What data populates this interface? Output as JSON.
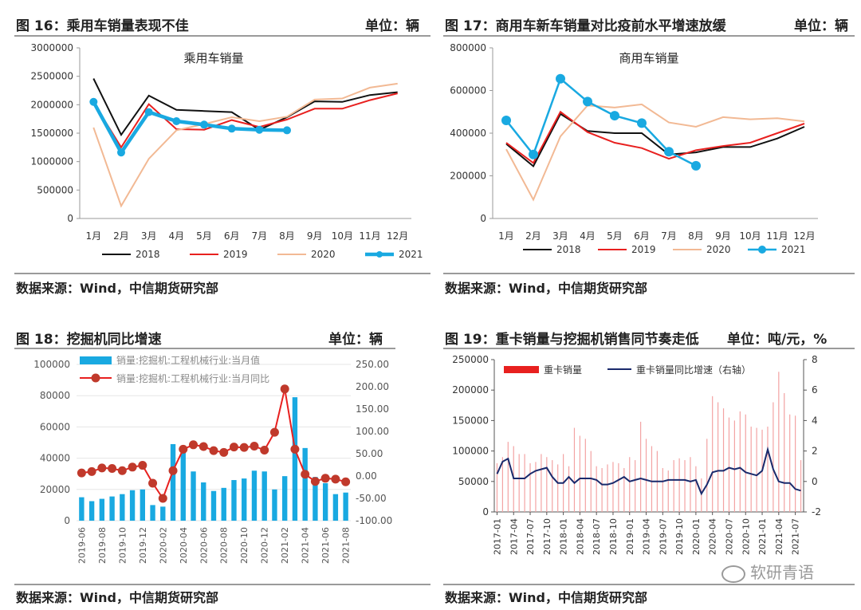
{
  "panels": {
    "p16": {
      "title": "图 16：乘用车销量表现不佳",
      "unit": "单位：辆",
      "source": "数据来源：Wind，中信期货研究部"
    },
    "p17": {
      "title": "图 17：商用车新车销量对比疫前水平增速放缓",
      "unit": "单位：辆",
      "source": "数据来源：Wind，中信期货研究部"
    },
    "p18": {
      "title": "图 18：挖掘机同比增速",
      "unit": "单位：辆",
      "source": "数据来源：Wind，中信期货研究部"
    },
    "p19": {
      "title": "图 19：重卡销量与挖掘机销售同节奏走低",
      "unit": "单位：吨/元，%",
      "source": "数据来源：Wind，中信期货研究部"
    }
  },
  "watermark": "软研青语",
  "colors": {
    "black": "#111111",
    "red": "#e8201f",
    "peach": "#f2b994",
    "blue": "#19a9e1",
    "navy": "#1a2a6c",
    "dotred": "#c0392b"
  },
  "chart_data": [
    {
      "id": "c16",
      "type": "line",
      "title": "乘用车销量",
      "categories": [
        "1月",
        "2月",
        "3月",
        "4月",
        "5月",
        "6月",
        "7月",
        "8月",
        "9月",
        "10月",
        "11月",
        "12月"
      ],
      "ylim": [
        0,
        3000000
      ],
      "yticks": [
        "0",
        "500000",
        "1000000",
        "1500000",
        "2000000",
        "2500000",
        "3000000"
      ],
      "series": [
        {
          "name": "2018",
          "color": "#111111",
          "values": [
            2460000,
            1470000,
            2160000,
            1910000,
            1890000,
            1870000,
            1560000,
            1780000,
            2060000,
            2050000,
            2170000,
            2220000
          ]
        },
        {
          "name": "2019",
          "color": "#e8201f",
          "values": [
            2040000,
            1250000,
            2010000,
            1570000,
            1560000,
            1730000,
            1610000,
            1740000,
            1930000,
            1930000,
            2080000,
            2200000
          ]
        },
        {
          "name": "2020",
          "color": "#f2b994",
          "values": [
            1600000,
            220000,
            1050000,
            1550000,
            1660000,
            1780000,
            1710000,
            1790000,
            2090000,
            2110000,
            2300000,
            2370000
          ]
        },
        {
          "name": "2021",
          "color": "#19a9e1",
          "values": [
            2050000,
            1160000,
            1870000,
            1710000,
            1650000,
            1580000,
            1560000,
            1550000,
            null,
            null,
            null,
            null
          ]
        }
      ]
    },
    {
      "id": "c17",
      "type": "line",
      "title": "商用车销量",
      "categories": [
        "1月",
        "2月",
        "3月",
        "4月",
        "5月",
        "6月",
        "7月",
        "8月",
        "9月",
        "10月",
        "11月",
        "12月"
      ],
      "ylim": [
        0,
        800000
      ],
      "yticks": [
        "0",
        "200000",
        "400000",
        "600000",
        "800000"
      ],
      "series": [
        {
          "name": "2018",
          "color": "#111111",
          "values": [
            350000,
            245000,
            490000,
            410000,
            400000,
            400000,
            300000,
            310000,
            335000,
            335000,
            375000,
            430000
          ]
        },
        {
          "name": "2019",
          "color": "#e8201f",
          "values": [
            355000,
            260000,
            500000,
            405000,
            355000,
            330000,
            280000,
            320000,
            340000,
            355000,
            400000,
            445000
          ]
        },
        {
          "name": "2020",
          "color": "#f2b994",
          "values": [
            325000,
            88000,
            385000,
            530000,
            520000,
            535000,
            450000,
            430000,
            475000,
            465000,
            470000,
            455000
          ]
        },
        {
          "name": "2021",
          "color": "#19a9e1",
          "values": [
            460000,
            300000,
            655000,
            548000,
            482000,
            447000,
            313000,
            247000,
            null,
            null,
            null,
            null
          ]
        }
      ]
    },
    {
      "id": "c18",
      "type": "bar",
      "categories": [
        "2019-06",
        "2019-07",
        "2019-08",
        "2019-09",
        "2019-10",
        "2019-11",
        "2019-12",
        "2020-01",
        "2020-02",
        "2020-03",
        "2020-04",
        "2020-05",
        "2020-06",
        "2020-07",
        "2020-08",
        "2020-09",
        "2020-10",
        "2020-11",
        "2020-12",
        "2021-01",
        "2021-02",
        "2021-03",
        "2021-04",
        "2021-05",
        "2021-06",
        "2021-07",
        "2021-08"
      ],
      "xtick_labels": [
        "2019-06",
        "2019-08",
        "2019-10",
        "2019-12",
        "2020-02",
        "2020-04",
        "2020-06",
        "2020-08",
        "2020-10",
        "2020-12",
        "2021-02",
        "2021-04",
        "2021-06",
        "2021-08"
      ],
      "ylim": [
        0,
        100000
      ],
      "yticks": [
        "0",
        "20000",
        "40000",
        "60000",
        "80000",
        "100000"
      ],
      "y2lim": [
        -100,
        250
      ],
      "y2ticks": [
        "-100.00",
        "-50.00",
        "0.00",
        "50.00",
        "100.00",
        "150.00",
        "200.00",
        "250.00"
      ],
      "series": [
        {
          "name": "销量:挖掘机:工程机械行业:当月值",
          "color": "#19a9e1",
          "axis": "left",
          "values": [
            15000,
            12500,
            14000,
            15500,
            17000,
            19500,
            20000,
            10000,
            9000,
            49000,
            44000,
            31500,
            24500,
            19000,
            21000,
            26000,
            27000,
            32000,
            31500,
            20000,
            28500,
            79000,
            46500,
            28000,
            24000,
            17000,
            18000
          ]
        },
        {
          "name": "销量:挖掘机:工程机械行业:当月同比",
          "color": "#c0392b",
          "axis": "right",
          "values": [
            7,
            10,
            18,
            17,
            12,
            20,
            24,
            -16,
            -50,
            12,
            60,
            70,
            66,
            57,
            53,
            65,
            64,
            67,
            58,
            98,
            195,
            60,
            4,
            -12,
            -5,
            -7,
            -13
          ]
        }
      ]
    },
    {
      "id": "c19",
      "type": "bar",
      "categories": [
        "2017-01",
        "2017-02",
        "2017-03",
        "2017-04",
        "2017-05",
        "2017-06",
        "2017-07",
        "2017-08",
        "2017-09",
        "2017-10",
        "2017-11",
        "2017-12",
        "2018-01",
        "2018-02",
        "2018-03",
        "2018-04",
        "2018-05",
        "2018-06",
        "2018-07",
        "2018-08",
        "2018-09",
        "2018-10",
        "2018-11",
        "2018-12",
        "2019-01",
        "2019-02",
        "2019-03",
        "2019-04",
        "2019-05",
        "2019-06",
        "2019-07",
        "2019-08",
        "2019-09",
        "2019-10",
        "2019-11",
        "2019-12",
        "2020-01",
        "2020-02",
        "2020-03",
        "2020-04",
        "2020-05",
        "2020-06",
        "2020-07",
        "2020-08",
        "2020-09",
        "2020-10",
        "2020-11",
        "2020-12",
        "2021-01",
        "2021-02",
        "2021-03",
        "2021-04",
        "2021-05",
        "2021-06",
        "2021-07",
        "2021-08"
      ],
      "xtick_labels": [
        "2017-01",
        "2017-04",
        "2017-07",
        "2017-10",
        "2018-01",
        "2018-04",
        "2018-07",
        "2018-10",
        "2019-01",
        "2019-04",
        "2019-07",
        "2019-10",
        "2020-01",
        "2020-04",
        "2020-07",
        "2020-10",
        "2021-01",
        "2021-04",
        "2021-07"
      ],
      "ylim": [
        0,
        250000
      ],
      "yticks": [
        "0",
        "50000",
        "100000",
        "150000",
        "200000",
        "250000"
      ],
      "y2lim": [
        -2,
        8
      ],
      "y2ticks": [
        "-2",
        "0",
        "2",
        "4",
        "6",
        "8"
      ],
      "series": [
        {
          "name": "重卡销量",
          "color": "#e8201f",
          "axis": "left",
          "values": [
            80000,
            90000,
            115000,
            108000,
            95000,
            95000,
            80000,
            82000,
            95000,
            90000,
            85000,
            78000,
            95000,
            75000,
            138000,
            125000,
            120000,
            100000,
            75000,
            72000,
            78000,
            82000,
            80000,
            72000,
            90000,
            85000,
            148000,
            120000,
            108000,
            100000,
            72000,
            68000,
            85000,
            88000,
            85000,
            90000,
            75000,
            55000,
            120000,
            190000,
            180000,
            170000,
            155000,
            150000,
            165000,
            160000,
            140000,
            138000,
            135000,
            140000,
            180000,
            230000,
            195000,
            160000,
            158000,
            85000
          ]
        },
        {
          "name": "重卡销量同比增速（右轴）",
          "color": "#1a2a6c",
          "axis": "right",
          "values": [
            0.5,
            1.3,
            1.5,
            0.2,
            0.2,
            0.2,
            0.5,
            0.7,
            0.8,
            0.9,
            0.3,
            -0.1,
            -0.1,
            0.3,
            -0.1,
            0.2,
            0.2,
            0.2,
            0.1,
            -0.2,
            -0.2,
            -0.1,
            0.1,
            0.3,
            0.0,
            0.1,
            0.2,
            0.1,
            0.0,
            0.0,
            0.0,
            0.1,
            0.1,
            0.1,
            0.1,
            0.0,
            0.1,
            -0.8,
            -0.2,
            0.6,
            0.7,
            0.7,
            0.9,
            0.8,
            0.9,
            0.6,
            0.5,
            0.4,
            0.7,
            2.1,
            0.8,
            0.0,
            -0.1,
            -0.1,
            -0.5,
            -0.6
          ]
        }
      ]
    }
  ]
}
